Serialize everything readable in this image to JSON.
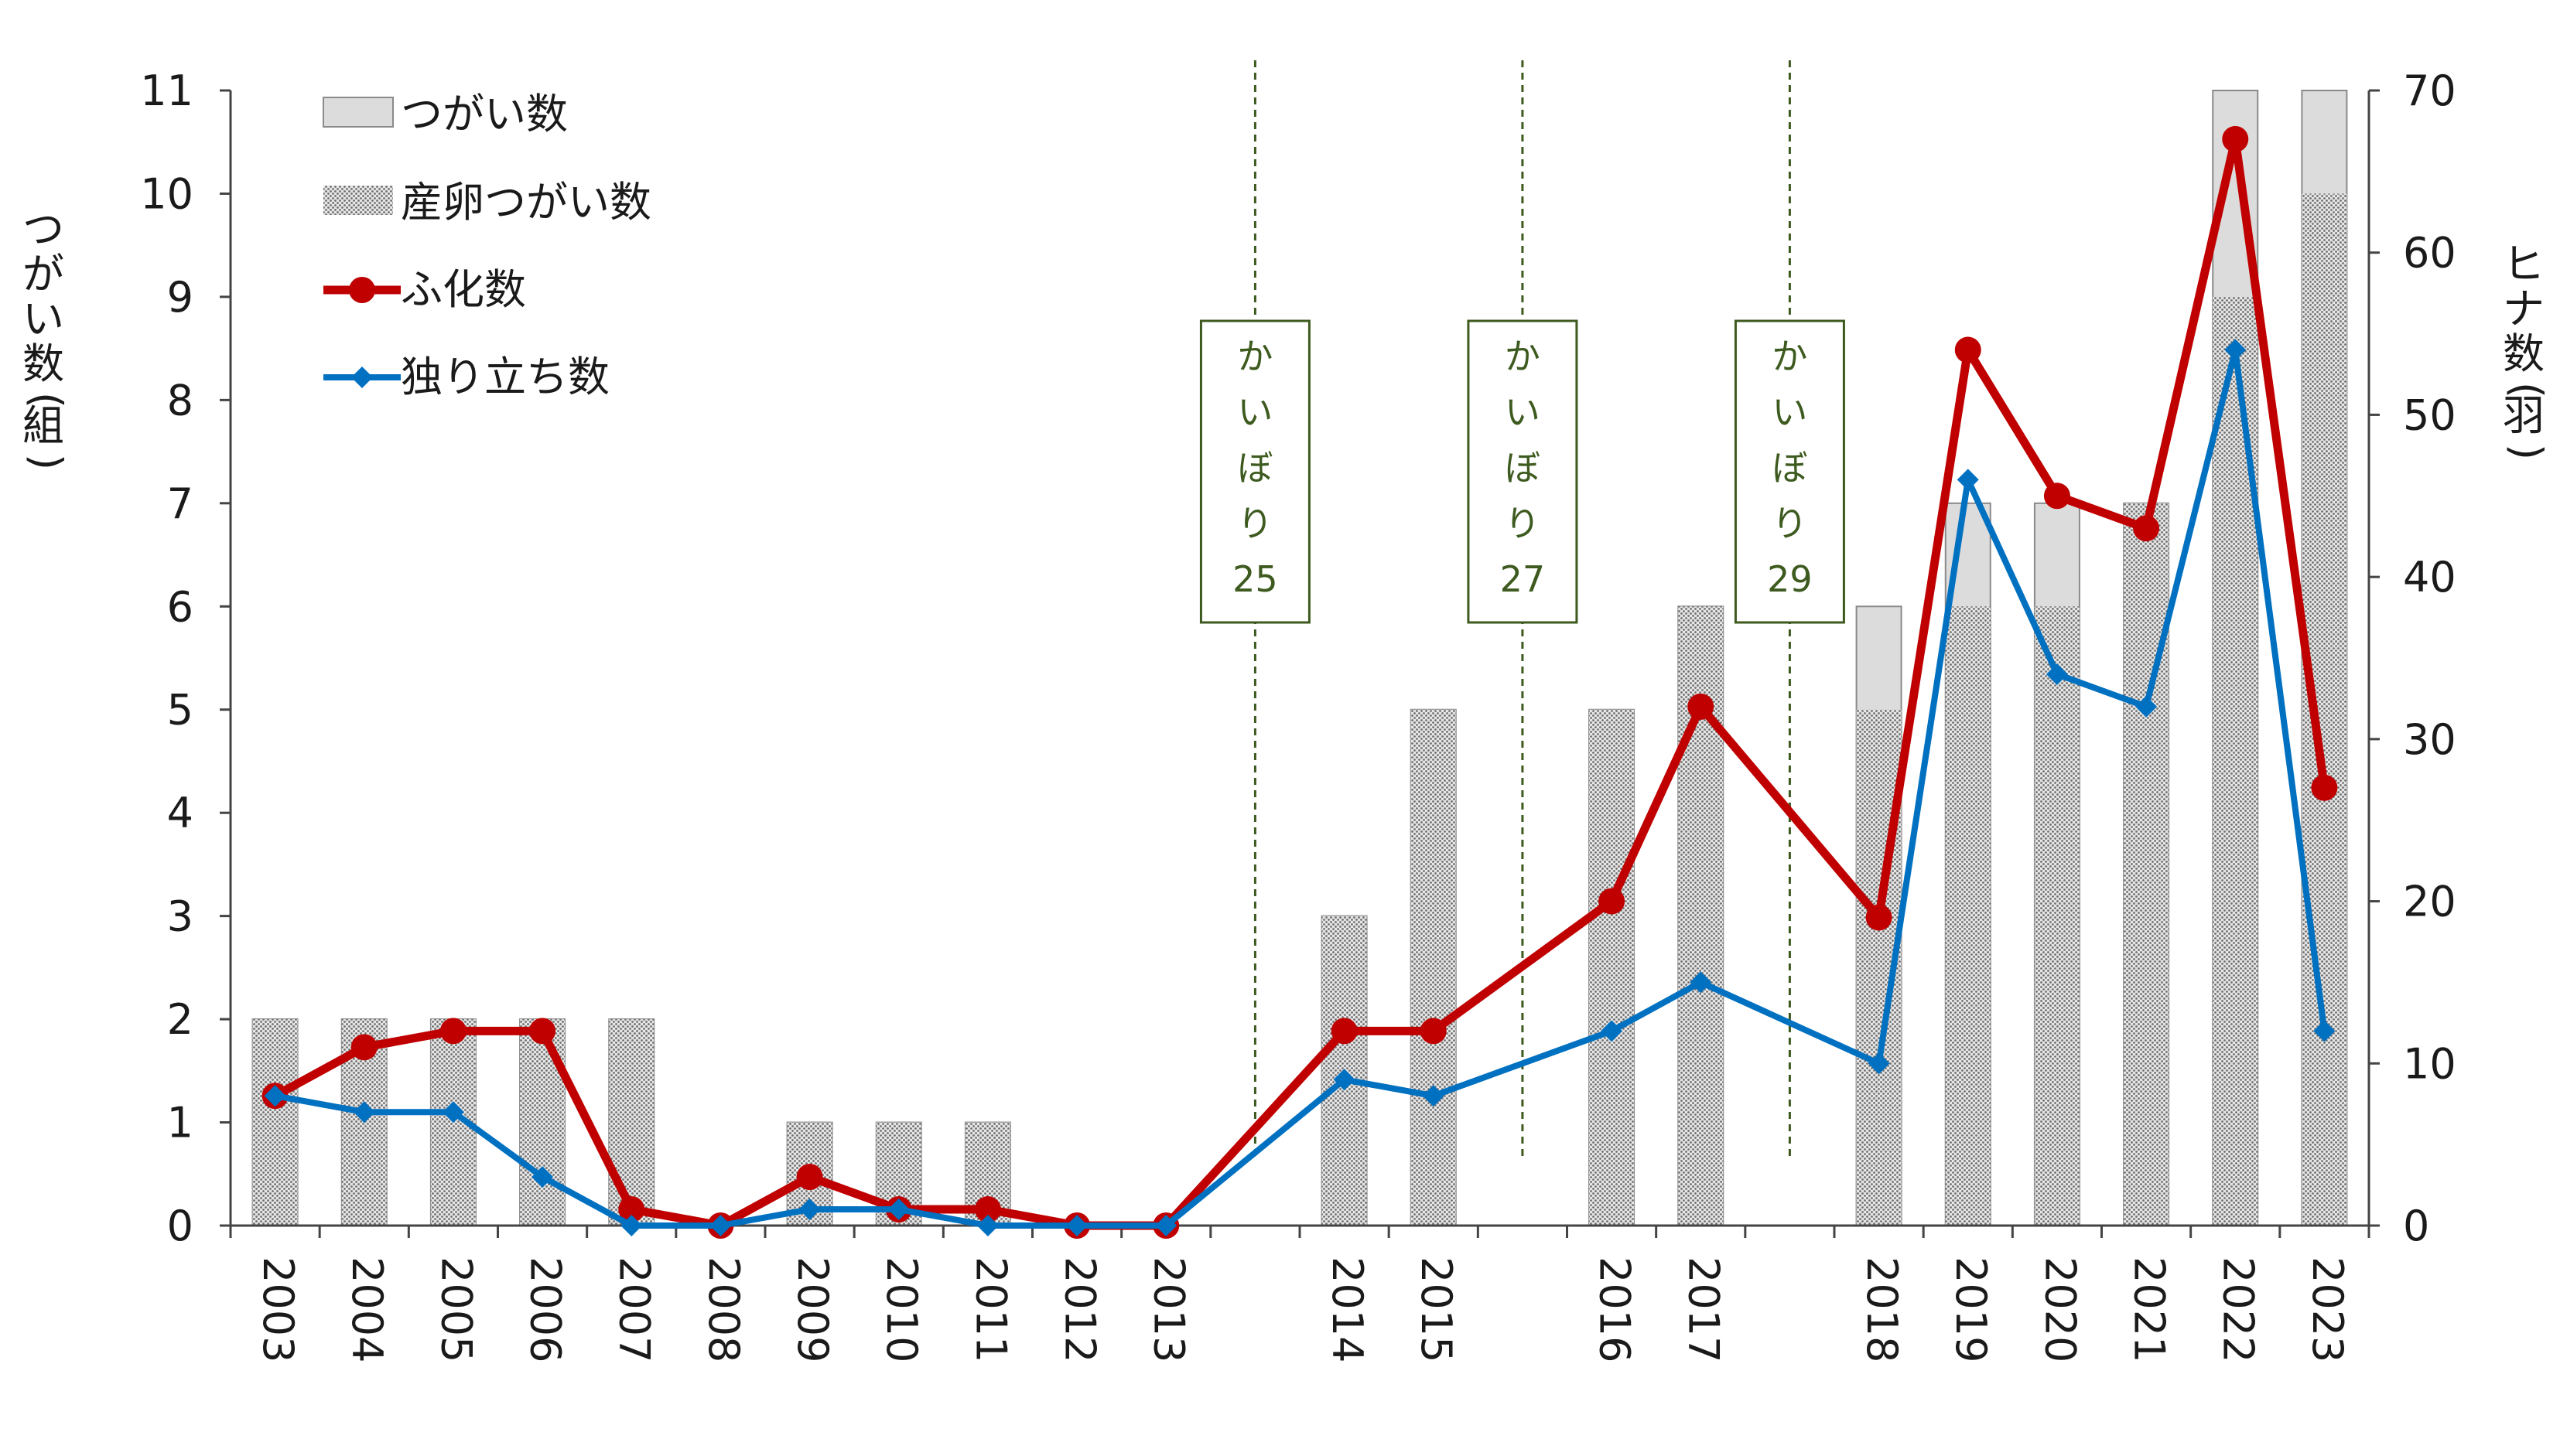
{
  "chart_data": {
    "type": "bar+line",
    "categories": [
      "2003",
      "2004",
      "2005",
      "2006",
      "2007",
      "2008",
      "2009",
      "2010",
      "2011",
      "2012",
      "2013",
      "2014",
      "2015",
      "2016",
      "2017",
      "2018",
      "2019",
      "2020",
      "2021",
      "2022",
      "2023"
    ],
    "category_gaps_after": [
      "2013",
      "2015",
      "2017"
    ],
    "left_axis": {
      "label": "つがい数(組)",
      "ylim": [
        0,
        11
      ],
      "ticks": [
        0,
        1,
        2,
        3,
        4,
        5,
        6,
        7,
        8,
        9,
        10,
        11
      ]
    },
    "right_axis": {
      "label": "ヒナ数(羽)",
      "ylim": [
        0,
        70
      ],
      "ticks": [
        0,
        10,
        20,
        30,
        40,
        50,
        60,
        70
      ]
    },
    "series": [
      {
        "name": "つがい数",
        "kind": "bar",
        "axis": "left",
        "color": "#dcdcdc",
        "values": [
          2,
          2,
          2,
          2,
          2,
          0,
          1,
          1,
          1,
          0,
          0,
          3,
          5,
          5,
          6,
          6,
          7,
          7,
          7,
          11,
          11
        ]
      },
      {
        "name": "産卵つがい数",
        "kind": "bar",
        "axis": "left",
        "pattern": "dotted-grey",
        "color": "#8c8c8c",
        "values": [
          2,
          2,
          2,
          2,
          2,
          0,
          1,
          1,
          1,
          0,
          0,
          3,
          5,
          5,
          6,
          5,
          6,
          6,
          7,
          9,
          10
        ]
      },
      {
        "name": "ふ化数",
        "kind": "line",
        "axis": "right",
        "marker": "circle",
        "color": "#c00000",
        "values": [
          8,
          11,
          12,
          12,
          1,
          0,
          3,
          1,
          1,
          0,
          0,
          12,
          12,
          20,
          32,
          19,
          54,
          45,
          43,
          67,
          27
        ]
      },
      {
        "name": "独り立ち数",
        "kind": "line",
        "axis": "right",
        "marker": "diamond",
        "color": "#0070c0",
        "values": [
          8,
          7,
          7,
          3,
          0,
          0,
          1,
          1,
          0,
          0,
          0,
          9,
          8,
          12,
          15,
          10,
          46,
          34,
          32,
          54,
          12
        ]
      }
    ],
    "annotations": [
      {
        "text_lines": [
          "か",
          "い",
          "ぼ",
          "り",
          "25"
        ],
        "between": [
          "2013",
          "2014"
        ],
        "color": "#3d5a1f"
      },
      {
        "text_lines": [
          "か",
          "い",
          "ぼ",
          "り",
          "27"
        ],
        "between": [
          "2015",
          "2016"
        ],
        "color": "#3d5a1f"
      },
      {
        "text_lines": [
          "か",
          "い",
          "ぼ",
          "り",
          "29"
        ],
        "between": [
          "2017",
          "2018"
        ],
        "color": "#3d5a1f"
      }
    ],
    "legend_position": "top-left"
  }
}
